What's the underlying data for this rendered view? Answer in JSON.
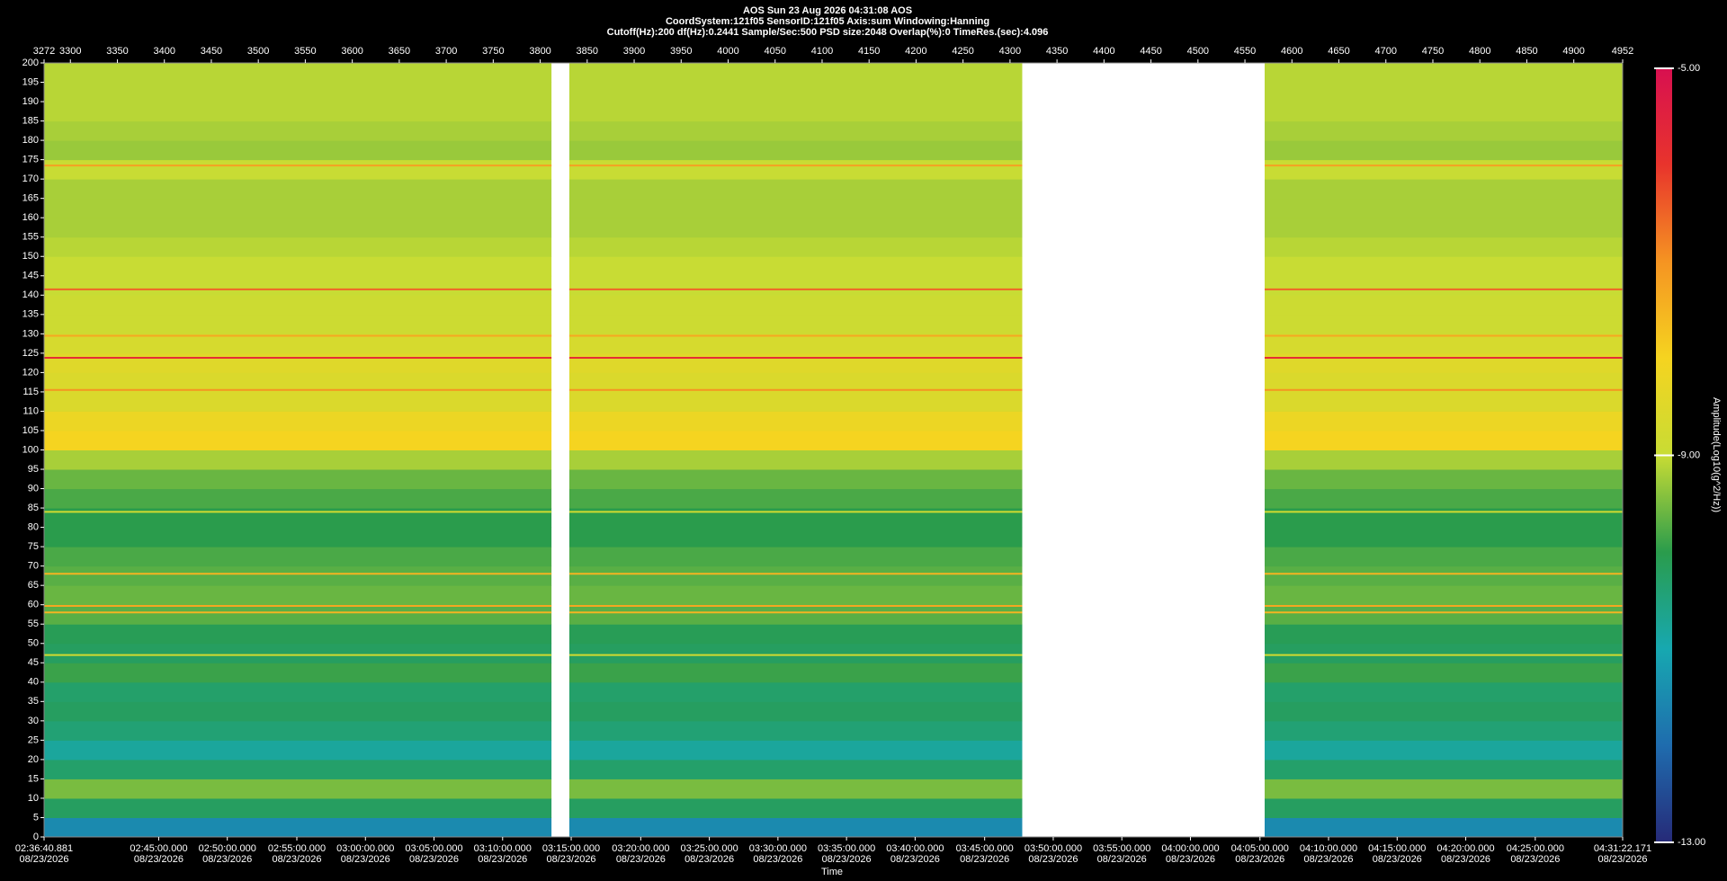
{
  "chart_data": {
    "type": "spectrogram",
    "title": "AOS  Sun 23 Aug 2026 04:31:08  AOS",
    "subtitle": "CoordSystem:121f05    SensorID:121f05    Axis:sum    Windowing:Hanning",
    "parameters": "Cutoff(Hz):200      df(Hz):0.2441      Sample/Sec:500      PSD size:2048      Overlap(%):0      TimeRes.(sec):4.096",
    "x_label": "Time",
    "colorbar_label": "Amplitude(Log10(g^2/Hz))",
    "xlim": [
      3272,
      4952
    ],
    "xticks": [
      3272,
      3300,
      3350,
      3400,
      3450,
      3500,
      3550,
      3600,
      3650,
      3700,
      3750,
      3800,
      3850,
      3900,
      3950,
      4000,
      4050,
      4100,
      4150,
      4200,
      4250,
      4300,
      4350,
      4400,
      4450,
      4500,
      4550,
      4600,
      4650,
      4700,
      4750,
      4800,
      4850,
      4900,
      4952
    ],
    "time_ticks": [
      {
        "value": 3272,
        "label": "02:36:40.881",
        "date": "08/23/2026"
      },
      {
        "value": 3394,
        "label": "02:45:00.000",
        "date": "08/23/2026"
      },
      {
        "value": 3467,
        "label": "02:50:00.000",
        "date": "08/23/2026"
      },
      {
        "value": 3541,
        "label": "02:55:00.000",
        "date": "08/23/2026"
      },
      {
        "value": 3614,
        "label": "03:00:00.000",
        "date": "08/23/2026"
      },
      {
        "value": 3687,
        "label": "03:05:00.000",
        "date": "08/23/2026"
      },
      {
        "value": 3760,
        "label": "03:10:00.000",
        "date": "08/23/2026"
      },
      {
        "value": 3833,
        "label": "03:15:00.000",
        "date": "08/23/2026"
      },
      {
        "value": 3907,
        "label": "03:20:00.000",
        "date": "08/23/2026"
      },
      {
        "value": 3980,
        "label": "03:25:00.000",
        "date": "08/23/2026"
      },
      {
        "value": 4053,
        "label": "03:30:00.000",
        "date": "08/23/2026"
      },
      {
        "value": 4126,
        "label": "03:35:00.000",
        "date": "08/23/2026"
      },
      {
        "value": 4199,
        "label": "03:40:00.000",
        "date": "08/23/2026"
      },
      {
        "value": 4273,
        "label": "03:45:00.000",
        "date": "08/23/2026"
      },
      {
        "value": 4346,
        "label": "03:50:00.000",
        "date": "08/23/2026"
      },
      {
        "value": 4419,
        "label": "03:55:00.000",
        "date": "08/23/2026"
      },
      {
        "value": 4492,
        "label": "04:00:00.000",
        "date": "08/23/2026"
      },
      {
        "value": 4566,
        "label": "04:05:00.000",
        "date": "08/23/2026"
      },
      {
        "value": 4639,
        "label": "04:10:00.000",
        "date": "08/23/2026"
      },
      {
        "value": 4712,
        "label": "04:15:00.000",
        "date": "08/23/2026"
      },
      {
        "value": 4785,
        "label": "04:20:00.000",
        "date": "08/23/2026"
      },
      {
        "value": 4859,
        "label": "04:25:00.000",
        "date": "08/23/2026"
      },
      {
        "value": 4952,
        "label": "04:31:22.171",
        "date": "08/23/2026"
      }
    ],
    "ylim": [
      0,
      200
    ],
    "yticks": [
      0,
      5,
      10,
      15,
      20,
      25,
      30,
      35,
      40,
      45,
      50,
      55,
      60,
      65,
      70,
      75,
      80,
      85,
      90,
      95,
      100,
      105,
      110,
      115,
      120,
      125,
      130,
      135,
      140,
      145,
      150,
      155,
      160,
      165,
      170,
      175,
      180,
      185,
      190,
      195,
      200
    ],
    "clim": [
      -13,
      -5
    ],
    "cticks": [
      {
        "value": -13,
        "label": "-13.00"
      },
      {
        "value": -9,
        "label": "-9.00"
      },
      {
        "value": -5,
        "label": "-5.00"
      }
    ],
    "colormap": [
      "#262a78",
      "#1f6cae",
      "#17a8b0",
      "#2a9c4c",
      "#c8dc34",
      "#f5d420",
      "#f59422",
      "#e8342c",
      "#d81050"
    ],
    "segments": [
      [
        3272,
        3812
      ],
      [
        3831,
        4313
      ],
      [
        4571,
        4952
      ]
    ],
    "profile": {
      "bins": [
        0,
        5,
        10,
        15,
        20,
        25,
        30,
        35,
        40,
        45,
        50,
        55,
        60,
        65,
        70,
        75,
        80,
        85,
        90,
        95,
        100,
        105,
        110,
        115,
        120,
        125,
        130,
        135,
        140,
        145,
        150,
        155,
        160,
        165,
        170,
        175,
        180,
        185,
        190,
        195,
        200
      ],
      "levels": [
        -11.5,
        -10.2,
        -9.5,
        -10.3,
        -10.8,
        -10.4,
        -10.2,
        -10.3,
        -9.9,
        -10.2,
        -10.1,
        -9.7,
        -9.6,
        -9.7,
        -9.8,
        -10.0,
        -10.0,
        -9.8,
        -9.6,
        -9.2,
        -8.0,
        -8.2,
        -8.6,
        -8.6,
        -8.5,
        -8.7,
        -8.9,
        -8.9,
        -9.0,
        -9.0,
        -9.1,
        -9.2,
        -9.2,
        -9.2,
        -9.0,
        -9.3,
        -9.2,
        -9.1,
        -9.1,
        -9.1
      ]
    },
    "lines": [
      {
        "freq": 173.5,
        "level": -7.2
      },
      {
        "freq": 141.5,
        "level": -6.5
      },
      {
        "freq": 129.5,
        "level": -7.3
      },
      {
        "freq": 123.8,
        "level": -5.8
      },
      {
        "freq": 115.5,
        "level": -7.0
      },
      {
        "freq": 84,
        "level": -8.8
      },
      {
        "freq": 68,
        "level": -7.5
      },
      {
        "freq": 59.7,
        "level": -7.3
      },
      {
        "freq": 58,
        "level": -7.5
      },
      {
        "freq": 47,
        "level": -8.8
      }
    ]
  }
}
